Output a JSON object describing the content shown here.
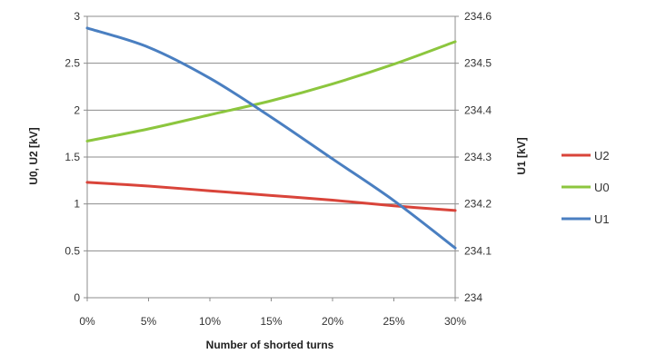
{
  "chart_data": {
    "type": "line",
    "x": [
      0,
      1,
      2,
      3,
      4,
      5,
      6
    ],
    "x_tick_labels": [
      "0%",
      "5%",
      "10%",
      "15%",
      "20%",
      "25%",
      "30%"
    ],
    "xlabel": "Number of shorted turns",
    "ylabel_left": "U0, U2 [kV]",
    "ylabel_right": "U1 [kV]",
    "ylim_left": [
      0,
      3
    ],
    "yticks_left": [
      "0",
      "0.5",
      "1",
      "1.5",
      "2",
      "2.5",
      "3"
    ],
    "ylim_right": [
      234,
      234.6
    ],
    "yticks_right": [
      "234",
      "234.1",
      "234.2",
      "234.3",
      "234.4",
      "234.5",
      "234.6"
    ],
    "grid": true,
    "legend_position": "right",
    "series": [
      {
        "name": "U2",
        "axis": "left",
        "color": "#d9443a",
        "values": [
          1.23,
          1.19,
          1.14,
          1.09,
          1.04,
          0.98,
          0.93
        ]
      },
      {
        "name": "U0",
        "axis": "left",
        "color": "#8cc63e",
        "values": [
          1.67,
          1.8,
          1.95,
          2.1,
          2.28,
          2.49,
          2.73
        ]
      },
      {
        "name": "U1",
        "axis": "right",
        "color": "#4a7fc1",
        "values": [
          234.575,
          234.534,
          234.468,
          234.385,
          234.296,
          234.207,
          234.106
        ]
      }
    ]
  }
}
